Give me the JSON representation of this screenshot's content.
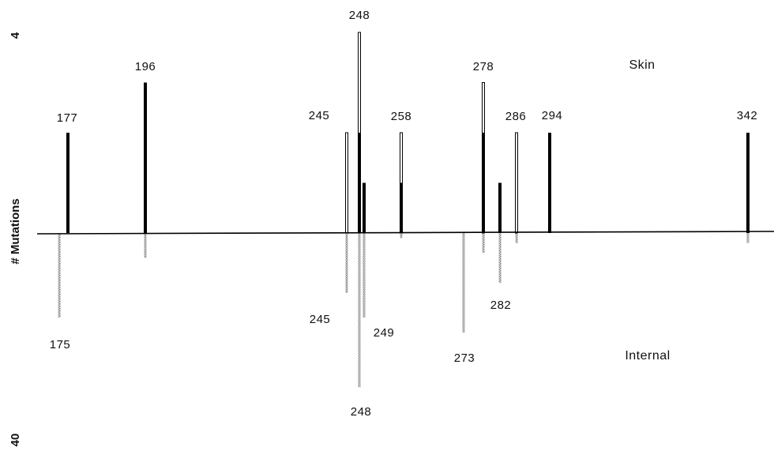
{
  "chart_data": {
    "type": "bar",
    "panels": {
      "top": "Skin",
      "bottom": "Internal"
    },
    "y_axis": {
      "top_tick": "4",
      "label": "# Mutations",
      "bottom_tick": "40"
    },
    "skin": {
      "labels": [
        {
          "text": "177"
        },
        {
          "text": "196"
        },
        {
          "text": "245"
        },
        {
          "text": "248"
        },
        {
          "text": "258"
        },
        {
          "text": "278"
        },
        {
          "text": "286"
        },
        {
          "text": "294"
        },
        {
          "text": "342"
        }
      ],
      "bars": [
        {
          "codon": 177,
          "value": 2,
          "style": "filled"
        },
        {
          "codon": 196,
          "value": 3,
          "style": "filled"
        },
        {
          "codon": 245,
          "value": 2,
          "style": "open"
        },
        {
          "codon": 248,
          "value": 4,
          "style": "open"
        },
        {
          "codon": 248,
          "value": 2,
          "style": "filled"
        },
        {
          "codon": 249,
          "value": 1,
          "style": "filled"
        },
        {
          "codon": 258,
          "value": 2,
          "style": "open"
        },
        {
          "codon": 258,
          "value": 1,
          "style": "filled"
        },
        {
          "codon": 278,
          "value": 3,
          "style": "open"
        },
        {
          "codon": 278,
          "value": 2,
          "style": "filled"
        },
        {
          "codon": 282,
          "value": 1,
          "style": "filled"
        },
        {
          "codon": 286,
          "value": 2,
          "style": "open"
        },
        {
          "codon": 294,
          "value": 2,
          "style": "filled"
        },
        {
          "codon": 342,
          "value": 2,
          "style": "filled"
        }
      ]
    },
    "internal": {
      "labels": [
        {
          "text": "175"
        },
        {
          "text": "245"
        },
        {
          "text": "248"
        },
        {
          "text": "249"
        },
        {
          "text": "273"
        },
        {
          "text": "282"
        }
      ],
      "bars": [
        {
          "codon": 175,
          "value": 17
        },
        {
          "codon": 196,
          "value": 5
        },
        {
          "codon": 245,
          "value": 12
        },
        {
          "codon": 248,
          "value": 31
        },
        {
          "codon": 249,
          "value": 17
        },
        {
          "codon": 258,
          "value": 1
        },
        {
          "codon": 273,
          "value": 20
        },
        {
          "codon": 278,
          "value": 4
        },
        {
          "codon": 282,
          "value": 10
        },
        {
          "codon": 286,
          "value": 2
        },
        {
          "codon": 342,
          "value": 2
        }
      ]
    }
  }
}
